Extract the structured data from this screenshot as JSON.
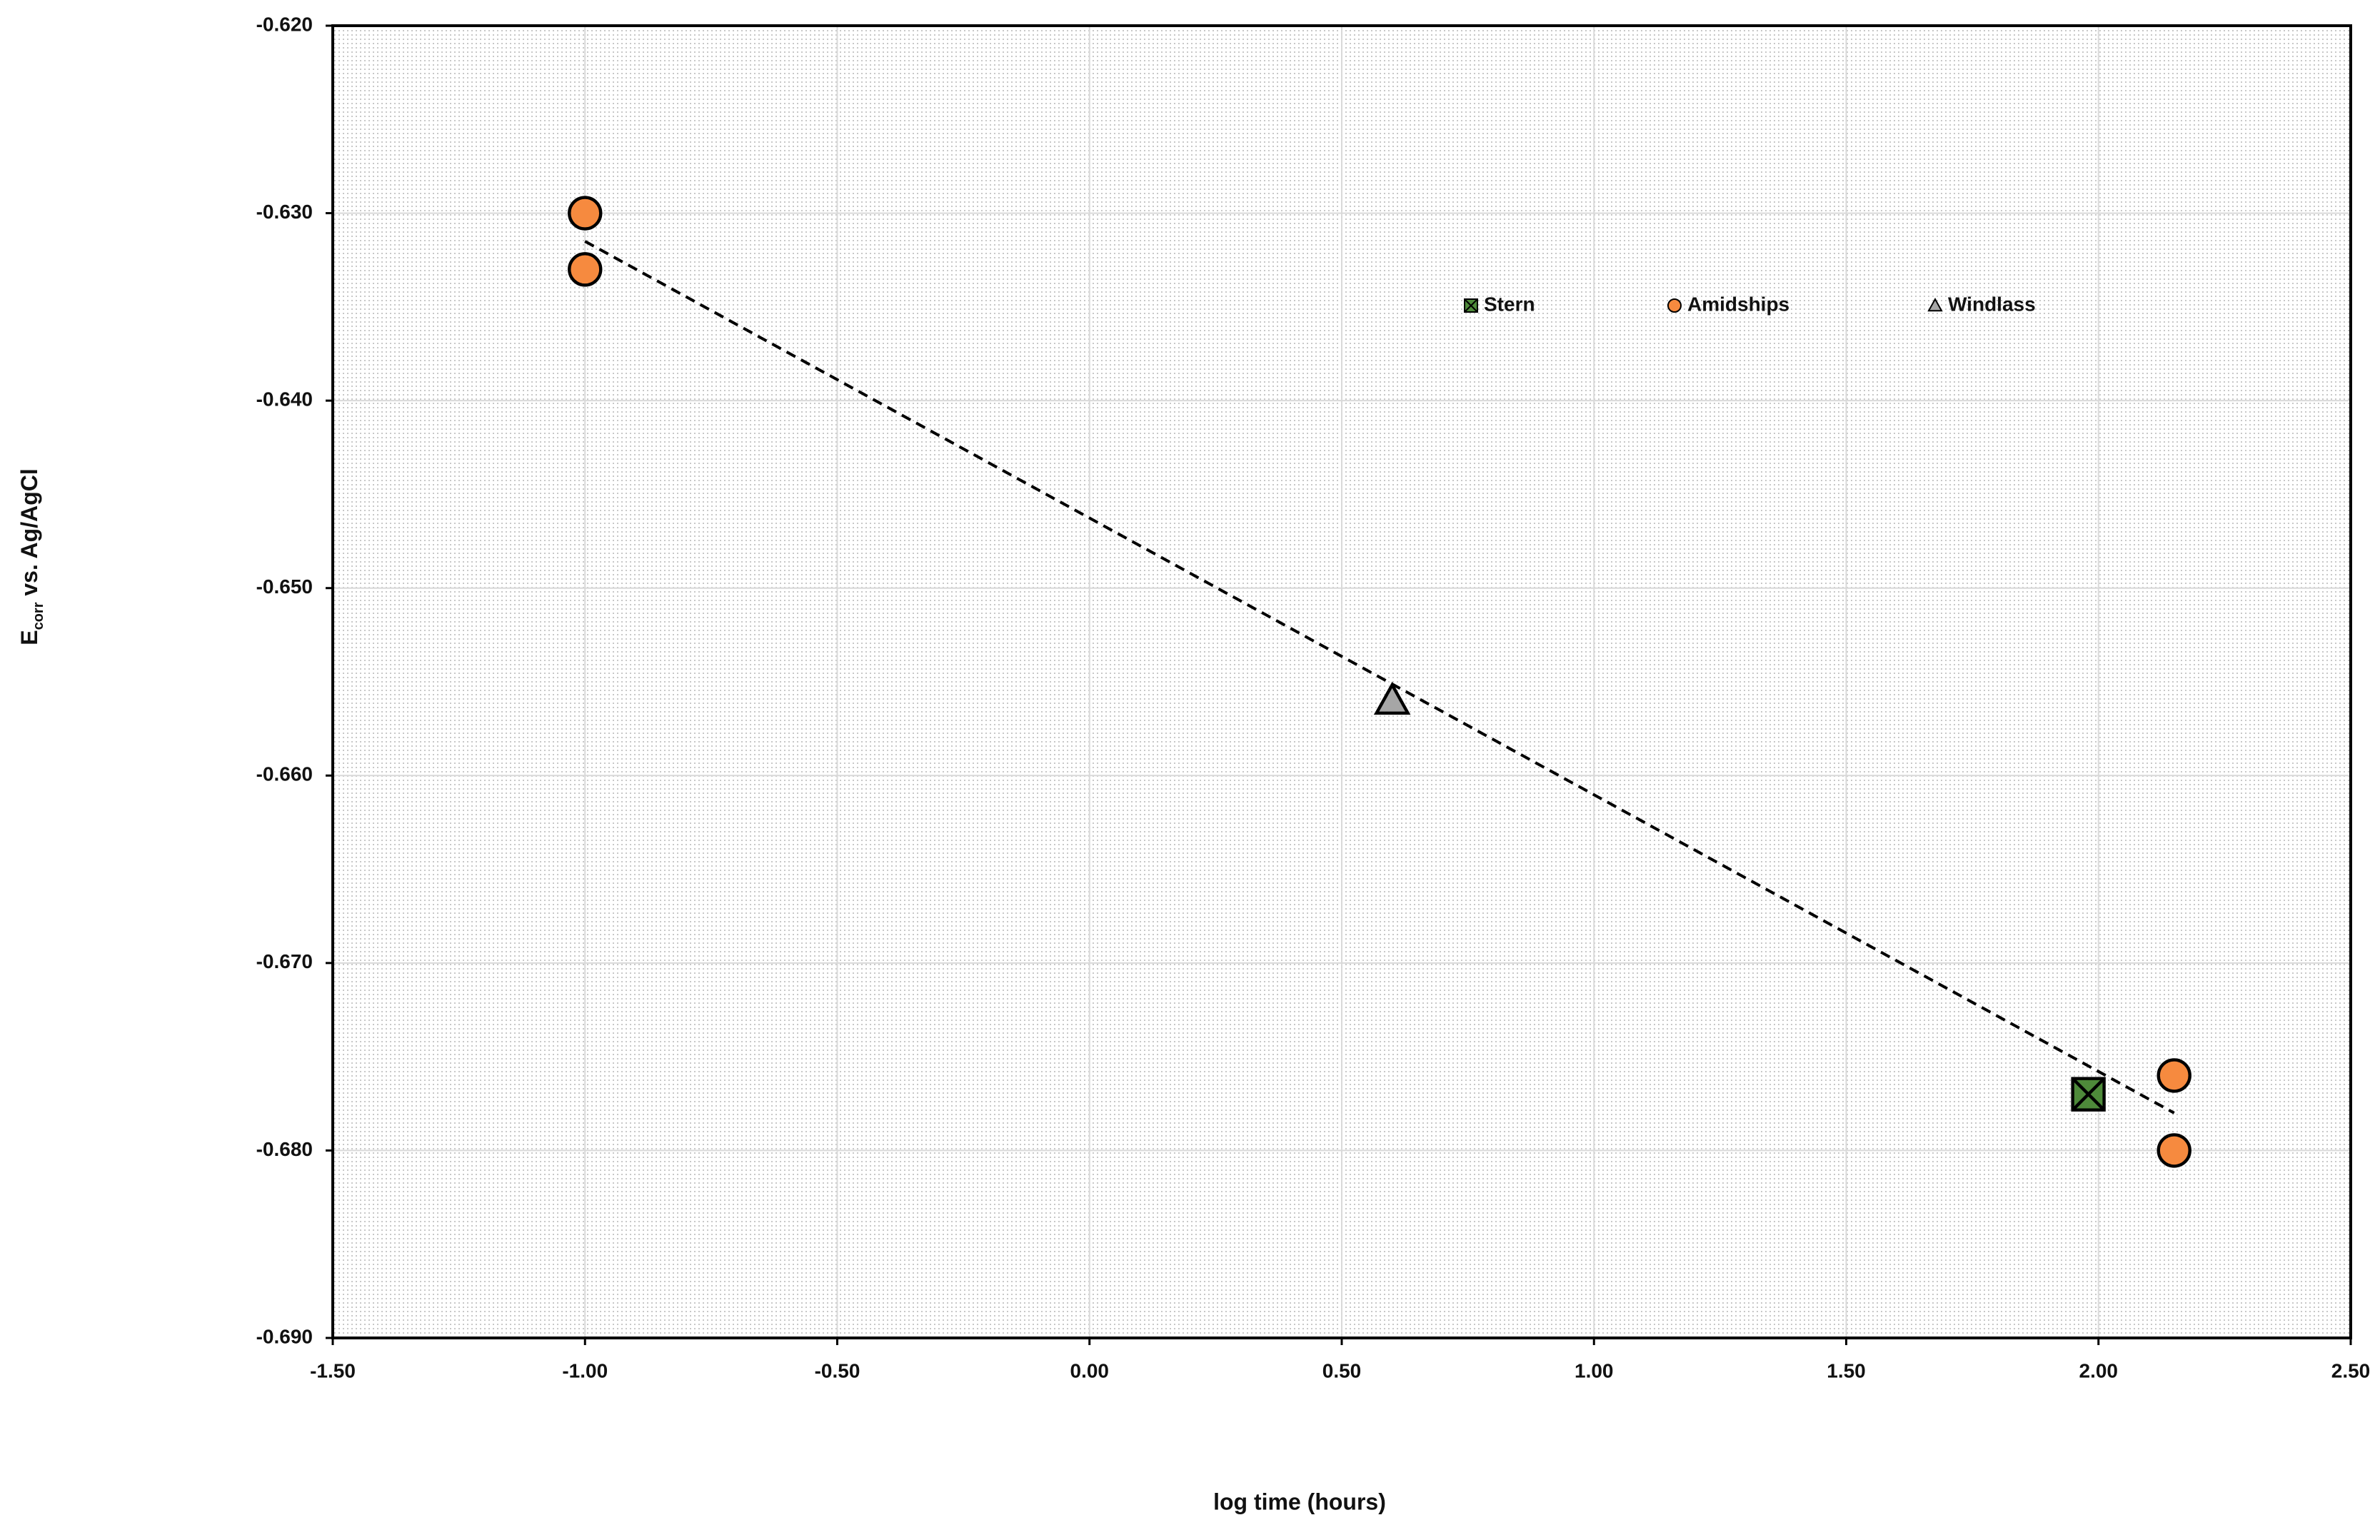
{
  "chart_data": {
    "type": "scatter",
    "xlabel": "log time (hours)",
    "ylabel": {
      "main": "E",
      "sub": "corr",
      "rest": " vs. Ag/AgCl"
    },
    "xlim": [
      -1.5,
      2.5
    ],
    "ylim": [
      -0.69,
      -0.62
    ],
    "xticks": [
      {
        "value": -1.5,
        "label": "-1.50"
      },
      {
        "value": -1,
        "label": "-1.00"
      },
      {
        "value": -0.5,
        "label": "-0.50"
      },
      {
        "value": 0,
        "label": "0.00"
      },
      {
        "value": 0.5,
        "label": "0.50"
      },
      {
        "value": 1,
        "label": "1.00"
      },
      {
        "value": 1.5,
        "label": "1.50"
      },
      {
        "value": 2,
        "label": "2.00"
      },
      {
        "value": 2.5,
        "label": "2.50"
      }
    ],
    "yticks": [
      {
        "value": -0.69,
        "label": "-0.690"
      },
      {
        "value": -0.68,
        "label": "-0.680"
      },
      {
        "value": -0.67,
        "label": "-0.670"
      },
      {
        "value": -0.66,
        "label": "-0.660"
      },
      {
        "value": -0.65,
        "label": "-0.650"
      },
      {
        "value": -0.64,
        "label": "-0.640"
      },
      {
        "value": -0.63,
        "label": "-0.630"
      },
      {
        "value": -0.62,
        "label": "-0.620"
      }
    ],
    "grid": true,
    "legend": "top",
    "series": [
      {
        "name": "Stern",
        "color": "#4e8a3a",
        "marker": "square-x",
        "x": [
          1.98
        ],
        "values": [
          -0.677
        ]
      },
      {
        "name": "Amidships",
        "color": "#f68a3f",
        "marker": "circle",
        "x": [
          -1,
          -1,
          2.15,
          2.15
        ],
        "values": [
          -0.63,
          -0.633,
          -0.676,
          -0.68
        ]
      },
      {
        "name": "Windlass",
        "color": "#a6a6a6",
        "marker": "triangle",
        "x": [
          0.6
        ],
        "values": [
          -0.656
        ]
      }
    ],
    "trendline": {
      "x": [
        -1,
        2.15
      ],
      "values": [
        -0.6315,
        -0.678
      ],
      "color": "#000000"
    }
  }
}
